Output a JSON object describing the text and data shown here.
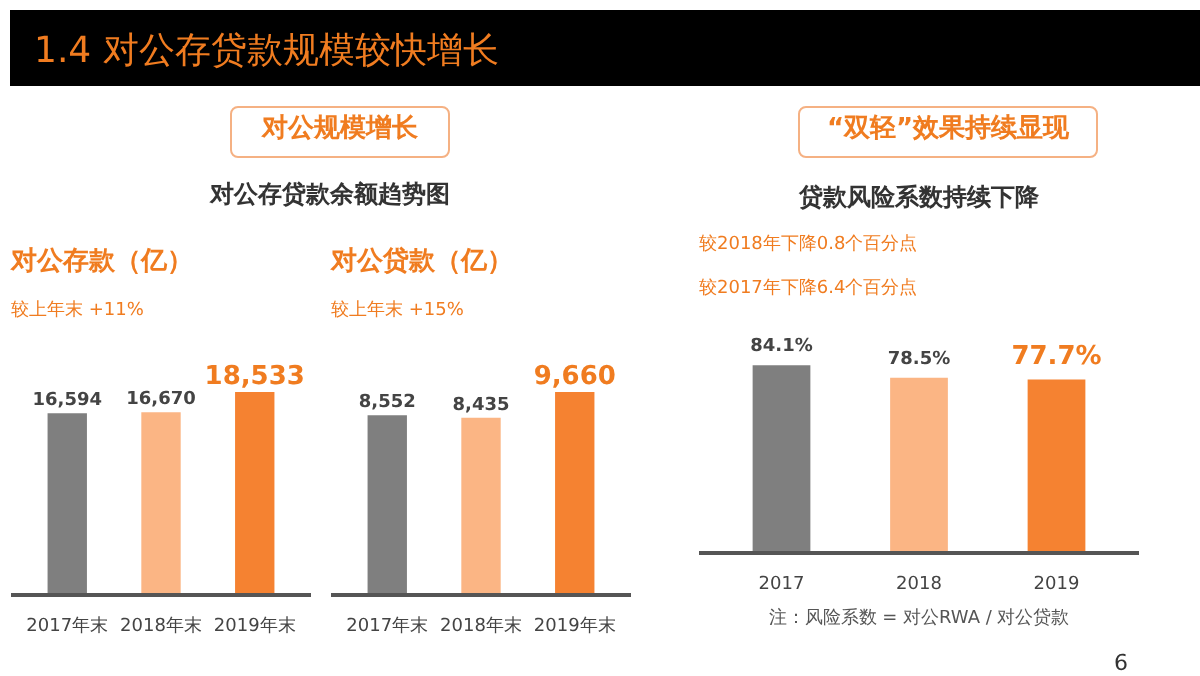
{
  "chart_data": [
    {
      "type": "bar",
      "title": "对公存款（亿）",
      "annotations": [
        "1.4 对公存贷款规模较快增长",
        "对公规模增长",
        "对公存贷款余额趋势图",
        "较上年末 +11%"
      ],
      "categories": [
        "2017年末",
        "2018年末",
        "2019年末"
      ],
      "values": [
        16594,
        16670,
        18533
      ],
      "colors": [
        "#7f7f7f",
        "#fbb584",
        "#f58231"
      ],
      "value_labels": [
        "16,594",
        "16,670",
        "18,533"
      ]
    },
    {
      "type": "bar",
      "title": "对公贷款（亿）",
      "annotations": [
        "较上年末 +15%"
      ],
      "categories": [
        "2017年末",
        "2018年末",
        "2019年末"
      ],
      "values": [
        8552,
        8435,
        9660
      ],
      "colors": [
        "#7f7f7f",
        "#fbb584",
        "#f58231"
      ],
      "value_labels": [
        "8,552",
        "8,435",
        "9,660"
      ]
    },
    {
      "type": "bar",
      "title": "贷款风险系数持续下降",
      "annotations": [
        "“双轻”效果持续显现",
        "较2018年下降0.8个百分点",
        "较2017年下降6.4个百分点",
        "注：风险系数 = 对公RWA / 对公贷款",
        "6"
      ],
      "categories": [
        "2017",
        "2018",
        "2019"
      ],
      "values": [
        84.1,
        78.5,
        77.7
      ],
      "colors": [
        "#7f7f7f",
        "#fbb584",
        "#f58231"
      ],
      "value_labels": [
        "84.1%",
        "78.5%",
        "77.7%"
      ]
    }
  ]
}
